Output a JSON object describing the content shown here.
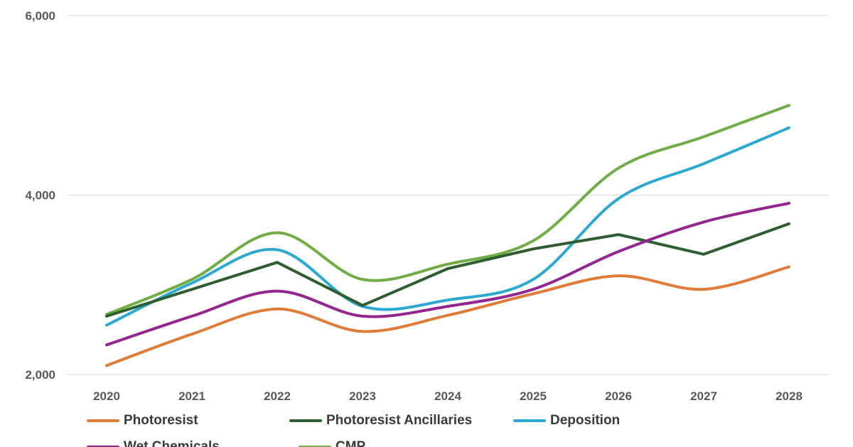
{
  "chart_data": {
    "type": "line",
    "title": "",
    "xlabel": "",
    "ylabel": "",
    "categories": [
      "2020",
      "2021",
      "2022",
      "2023",
      "2024",
      "2025",
      "2026",
      "2027",
      "2028"
    ],
    "x": [
      2020,
      2021,
      2022,
      2023,
      2024,
      2025,
      2026,
      2027,
      2028
    ],
    "ylim": [
      2000,
      6000
    ],
    "yticks": [
      2000,
      4000,
      6000
    ],
    "ytick_labels": [
      "2,000",
      "4,000",
      "6,000"
    ],
    "grid": "horizontal",
    "grid_color": "#d9d9d9",
    "axis_label_color": "#595959",
    "legend_position": "bottom",
    "series": [
      {
        "name": "Photoresist",
        "color": "#E07B39",
        "smooth": true,
        "values": [
          2100,
          2450,
          2730,
          2480,
          2660,
          2900,
          3100,
          2950,
          3200
        ]
      },
      {
        "name": "Photoresist Ancillaries",
        "color": "#2D5D30",
        "smooth": false,
        "values": [
          2650,
          2950,
          3250,
          2770,
          3180,
          3400,
          3560,
          3340,
          3680
        ]
      },
      {
        "name": "Deposition",
        "color": "#2BA9D1",
        "smooth": true,
        "values": [
          2550,
          3020,
          3390,
          2760,
          2830,
          3060,
          3960,
          4350,
          4750
        ]
      },
      {
        "name": "Wet Chemicals",
        "color": "#93278F",
        "smooth": true,
        "values": [
          2330,
          2650,
          2930,
          2650,
          2760,
          2950,
          3370,
          3700,
          3910
        ]
      },
      {
        "name": "CMP",
        "color": "#70AD47",
        "smooth": true,
        "values": [
          2670,
          3060,
          3580,
          3060,
          3230,
          3490,
          4300,
          4650,
          5000
        ]
      }
    ]
  }
}
